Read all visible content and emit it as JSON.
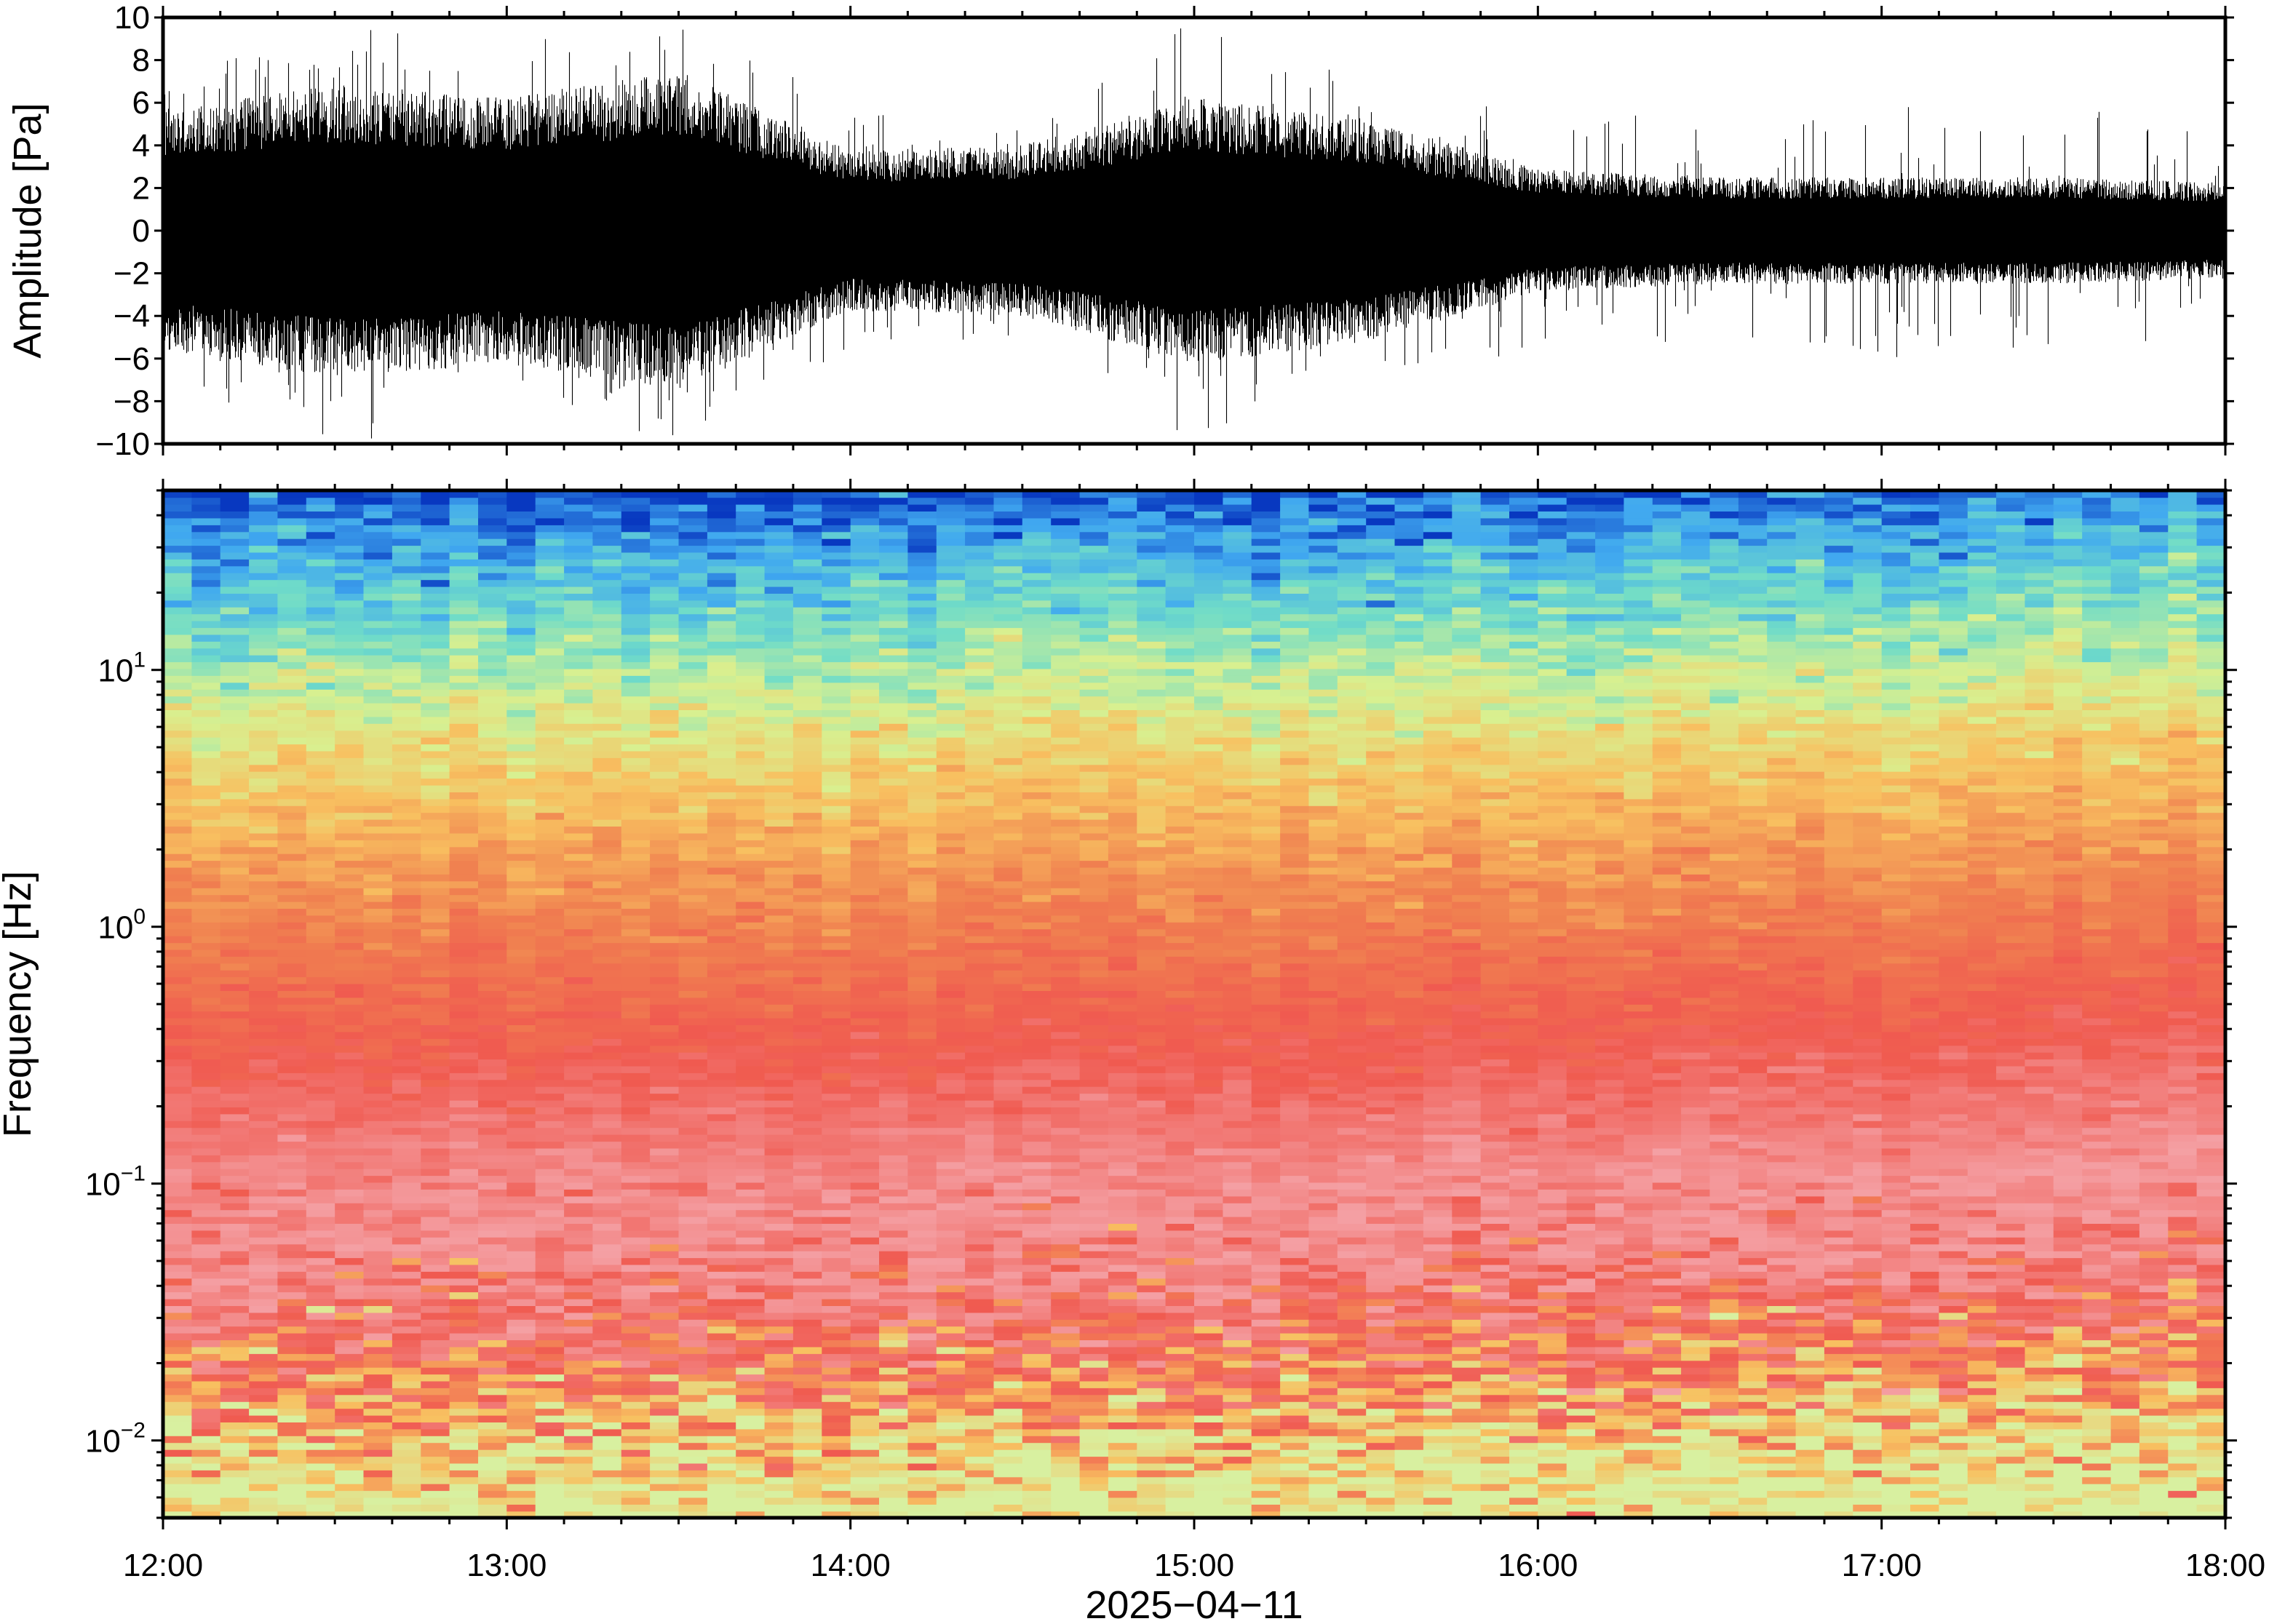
{
  "chart_data": [
    {
      "type": "line",
      "panel": "waveform",
      "title": "",
      "ylabel": "Amplitude [Pa]",
      "xlabel": "2025−04−11",
      "xlim": [
        "12:00",
        "18:00"
      ],
      "ylim": [
        -10,
        10
      ],
      "yticks": [
        -10,
        -8,
        -6,
        -4,
        -2,
        0,
        2,
        4,
        6,
        8,
        10
      ],
      "ytick_labels": [
        "−10",
        "−8",
        "−6",
        "−4",
        "−2",
        "0",
        "2",
        "4",
        "6",
        "8",
        "10"
      ],
      "grid": false,
      "envelope": {
        "time": [
          "12:00",
          "12:30",
          "13:00",
          "13:30",
          "14:00",
          "14:30",
          "15:00",
          "15:30",
          "16:00",
          "16:30",
          "17:00",
          "17:30",
          "18:00"
        ],
        "amplitude": [
          4.5,
          5.5,
          5.0,
          6.0,
          3.0,
          3.2,
          5.0,
          4.2,
          2.3,
          2.0,
          2.0,
          2.0,
          1.8
        ],
        "peak": [
          7,
          10,
          9,
          10,
          6,
          5,
          10,
          7,
          6,
          5,
          6,
          6,
          5
        ]
      },
      "color": "#000000"
    },
    {
      "type": "heatmap",
      "panel": "spectrogram",
      "title": "",
      "ylabel": "Frequency [Hz]",
      "xlabel": "2025−04−11",
      "xlim": [
        "12:00",
        "18:00"
      ],
      "ylim": [
        0.005,
        50
      ],
      "yscale": "log",
      "yticks": [
        0.01,
        0.1,
        1,
        10
      ],
      "ytick_labels": [
        {
          "base": "10",
          "exp": "−2"
        },
        {
          "base": "10",
          "exp": "−1"
        },
        {
          "base": "10",
          "exp": "0"
        },
        {
          "base": "10",
          "exp": "1"
        }
      ],
      "xticks": [
        "12:00",
        "13:00",
        "14:00",
        "15:00",
        "16:00",
        "17:00",
        "18:00"
      ],
      "colormap": [
        "#c8f0a8",
        "#f8e070",
        "#f8b050",
        "#f06050",
        "#f4a6a8",
        "#e8f0a0",
        "#80e0c0",
        "#40b0f0",
        "#0840c0"
      ],
      "color_profile_by_frequency": [
        {
          "freq": 0.005,
          "color": "#d8f0a0"
        },
        {
          "freq": 0.01,
          "color": "#f8c060"
        },
        {
          "freq": 0.02,
          "color": "#f05a50"
        },
        {
          "freq": 0.06,
          "color": "#f4a0a4"
        },
        {
          "freq": 0.3,
          "color": "#f05a50"
        },
        {
          "freq": 1,
          "color": "#f08050"
        },
        {
          "freq": 3,
          "color": "#f8c060"
        },
        {
          "freq": 7,
          "color": "#d8f090"
        },
        {
          "freq": 15,
          "color": "#70dcc8"
        },
        {
          "freq": 30,
          "color": "#40a8f0"
        },
        {
          "freq": 50,
          "color": "#0838c0"
        }
      ],
      "grid": false
    }
  ]
}
